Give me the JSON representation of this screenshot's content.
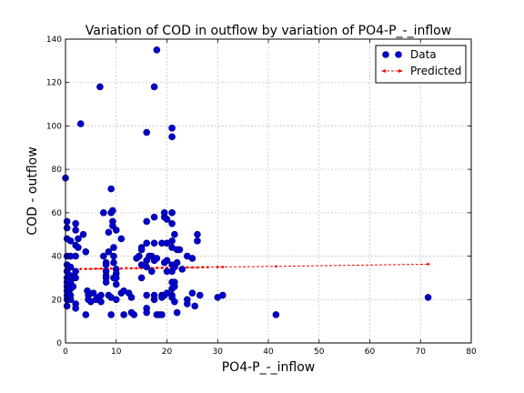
{
  "chart_data": {
    "type": "scatter",
    "title": "Variation of COD in outflow by variation of PO4-P_-_inflow",
    "xlabel": "PO4-P_-_inflow",
    "ylabel": "COD - outflow",
    "xlim": [
      0,
      80
    ],
    "ylim": [
      0,
      140
    ],
    "xticks": [
      0,
      10,
      20,
      30,
      40,
      50,
      60,
      70,
      80
    ],
    "yticks": [
      0,
      20,
      40,
      60,
      80,
      100,
      120,
      140
    ],
    "grid": true,
    "legend_placement": "top-right",
    "series": [
      {
        "name": "Data",
        "kind": "scatter",
        "color": "#0000cc",
        "points": [
          [
            0,
            76
          ],
          [
            0.3,
            56
          ],
          [
            0.3,
            53
          ],
          [
            0.3,
            48
          ],
          [
            0.3,
            40
          ],
          [
            0.3,
            36
          ],
          [
            0.3,
            33
          ],
          [
            0.3,
            30
          ],
          [
            0.3,
            28
          ],
          [
            0.3,
            26
          ],
          [
            0.3,
            24
          ],
          [
            0.3,
            22
          ],
          [
            0.3,
            20
          ],
          [
            0.3,
            17
          ],
          [
            1,
            47
          ],
          [
            1,
            40
          ],
          [
            1,
            35
          ],
          [
            1,
            31
          ],
          [
            1,
            28
          ],
          [
            1,
            25
          ],
          [
            1,
            22
          ],
          [
            1,
            20
          ],
          [
            1.5,
            30
          ],
          [
            1.5,
            26
          ],
          [
            2,
            55
          ],
          [
            2,
            52
          ],
          [
            2,
            45
          ],
          [
            2,
            40
          ],
          [
            2,
            33
          ],
          [
            2,
            30
          ],
          [
            2,
            18
          ],
          [
            2,
            16
          ],
          [
            2.5,
            48
          ],
          [
            2.5,
            44
          ],
          [
            3,
            101
          ],
          [
            3.5,
            50
          ],
          [
            4,
            42
          ],
          [
            4,
            13
          ],
          [
            4.3,
            24
          ],
          [
            4.5,
            22
          ],
          [
            4.5,
            20
          ],
          [
            5,
            19
          ],
          [
            5.5,
            23
          ],
          [
            6,
            20
          ],
          [
            6.5,
            21
          ],
          [
            6.8,
            118
          ],
          [
            7,
            22
          ],
          [
            7,
            19
          ],
          [
            7.5,
            60
          ],
          [
            7.5,
            40
          ],
          [
            8,
            37
          ],
          [
            8,
            36
          ],
          [
            8,
            33
          ],
          [
            8,
            31
          ],
          [
            8,
            30
          ],
          [
            8,
            28
          ],
          [
            8.5,
            51
          ],
          [
            8.5,
            42
          ],
          [
            8.5,
            22
          ],
          [
            9,
            71
          ],
          [
            9,
            60
          ],
          [
            9,
            21
          ],
          [
            9,
            13
          ],
          [
            9.3,
            61
          ],
          [
            9.3,
            56
          ],
          [
            9.3,
            54
          ],
          [
            9.5,
            44
          ],
          [
            9.5,
            40
          ],
          [
            9.5,
            37
          ],
          [
            9.5,
            30
          ],
          [
            10,
            52
          ],
          [
            10,
            34
          ],
          [
            10,
            32
          ],
          [
            10,
            30
          ],
          [
            10,
            27
          ],
          [
            10,
            20
          ],
          [
            11,
            48
          ],
          [
            11,
            23
          ],
          [
            11.5,
            24
          ],
          [
            11.5,
            13
          ],
          [
            12.5,
            23
          ],
          [
            13,
            21
          ],
          [
            13,
            14
          ],
          [
            13.5,
            13
          ],
          [
            14,
            39
          ],
          [
            14.5,
            40
          ],
          [
            15,
            44
          ],
          [
            15,
            43
          ],
          [
            15,
            36
          ],
          [
            15,
            30
          ],
          [
            16,
            97
          ],
          [
            16,
            56
          ],
          [
            16,
            46
          ],
          [
            16,
            38
          ],
          [
            16,
            35
          ],
          [
            16,
            22
          ],
          [
            16,
            16
          ],
          [
            16,
            14
          ],
          [
            16.5,
            40
          ],
          [
            17,
            40
          ],
          [
            17,
            33
          ],
          [
            17.5,
            118
          ],
          [
            17.5,
            58
          ],
          [
            17.5,
            46
          ],
          [
            17.5,
            38
          ],
          [
            17.5,
            22
          ],
          [
            17.5,
            20
          ],
          [
            18,
            135
          ],
          [
            18,
            39
          ],
          [
            18,
            13
          ],
          [
            18.5,
            13
          ],
          [
            19,
            46
          ],
          [
            19,
            22
          ],
          [
            19,
            21
          ],
          [
            19,
            13
          ],
          [
            19.5,
            60
          ],
          [
            19.5,
            58
          ],
          [
            19.5,
            37
          ],
          [
            19.5,
            22
          ],
          [
            20,
            57
          ],
          [
            20,
            46
          ],
          [
            20,
            38
          ],
          [
            20,
            33
          ],
          [
            20,
            23
          ],
          [
            21,
            99
          ],
          [
            21,
            95
          ],
          [
            21,
            60
          ],
          [
            21,
            55
          ],
          [
            21,
            47
          ],
          [
            21,
            44
          ],
          [
            21,
            36
          ],
          [
            21,
            33
          ],
          [
            21,
            28
          ],
          [
            21,
            25
          ],
          [
            21,
            22
          ],
          [
            21,
            21
          ],
          [
            21.5,
            50
          ],
          [
            21.5,
            35
          ],
          [
            21.5,
            28
          ],
          [
            21.5,
            26
          ],
          [
            21.5,
            19
          ],
          [
            22,
            43
          ],
          [
            22,
            37
          ],
          [
            22,
            14
          ],
          [
            22.5,
            43
          ],
          [
            23,
            34
          ],
          [
            24,
            40
          ],
          [
            24,
            20
          ],
          [
            24,
            18
          ],
          [
            25,
            39
          ],
          [
            25,
            23
          ],
          [
            25.5,
            17
          ],
          [
            26,
            50
          ],
          [
            26,
            47
          ],
          [
            26.5,
            22
          ],
          [
            30,
            21
          ],
          [
            31,
            22
          ],
          [
            41.5,
            13
          ],
          [
            71.5,
            21
          ]
        ]
      },
      {
        "name": "Predicted",
        "kind": "line",
        "color": "#ff0000",
        "points": [
          [
            0,
            34.0
          ],
          [
            1,
            34.0
          ],
          [
            2,
            34.0
          ],
          [
            3,
            34.1
          ],
          [
            4,
            34.1
          ],
          [
            5,
            34.1
          ],
          [
            6,
            34.2
          ],
          [
            7,
            34.2
          ],
          [
            8,
            34.2
          ],
          [
            9,
            34.3
          ],
          [
            10,
            34.3
          ],
          [
            11,
            34.3
          ],
          [
            12,
            34.4
          ],
          [
            13,
            34.4
          ],
          [
            14,
            34.4
          ],
          [
            15,
            34.5
          ],
          [
            16,
            34.5
          ],
          [
            17,
            34.5
          ],
          [
            18,
            34.6
          ],
          [
            19,
            34.6
          ],
          [
            20,
            34.6
          ],
          [
            21,
            34.7
          ],
          [
            22,
            34.7
          ],
          [
            23,
            34.7
          ],
          [
            24,
            34.8
          ],
          [
            25,
            34.8
          ],
          [
            26,
            34.8
          ],
          [
            27,
            34.9
          ],
          [
            28,
            34.9
          ],
          [
            30,
            35.0
          ],
          [
            31,
            35.0
          ],
          [
            41.5,
            35.3
          ],
          [
            71.5,
            36.3
          ]
        ]
      }
    ]
  }
}
